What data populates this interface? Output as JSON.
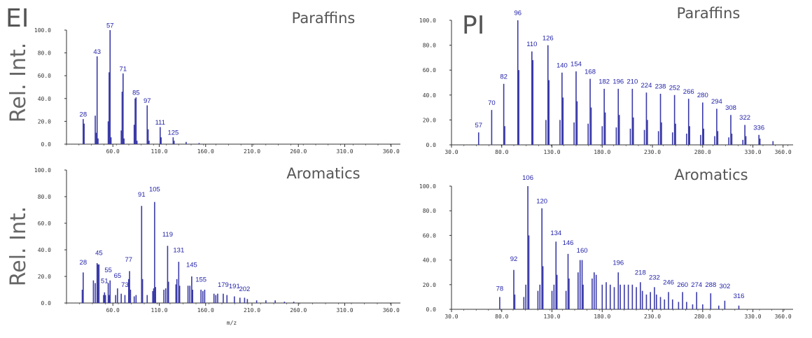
{
  "figure": {
    "ionization_labels": [
      "EI",
      "PI"
    ],
    "y_axis_label": "Rel. Int.",
    "x_axis_label": "m/z"
  },
  "colors": {
    "spectrum": "#3a3aa8",
    "axis": "#333333",
    "label": "#2222aa",
    "title": "#555555"
  },
  "chart_data": [
    {
      "id": "ei-paraffins",
      "type": "bar",
      "title": "Paraffins",
      "xlim": [
        10,
        370
      ],
      "ylim": [
        0,
        100
      ],
      "xticks": [
        "60.0",
        "110.0",
        "160.0",
        "210.0",
        "260.0",
        "310.0",
        "360.0"
      ],
      "yticks": [
        "0.0",
        "20.0",
        "40.0",
        "60.0",
        "80.0",
        "100.0"
      ],
      "peaks": [
        [
          28,
          22
        ],
        [
          29,
          18
        ],
        [
          41,
          25
        ],
        [
          42,
          10
        ],
        [
          43,
          77
        ],
        [
          44,
          5
        ],
        [
          55,
          20
        ],
        [
          56,
          63
        ],
        [
          57,
          100
        ],
        [
          58,
          6
        ],
        [
          69,
          12
        ],
        [
          70,
          46
        ],
        [
          71,
          62
        ],
        [
          72,
          5
        ],
        [
          83,
          17
        ],
        [
          84,
          40
        ],
        [
          85,
          41
        ],
        [
          86,
          3
        ],
        [
          97,
          34
        ],
        [
          98,
          13
        ],
        [
          99,
          3
        ],
        [
          111,
          15
        ],
        [
          112,
          6
        ],
        [
          125,
          6
        ],
        [
          126,
          3
        ],
        [
          139,
          2
        ],
        [
          153,
          1
        ]
      ],
      "labels": [
        [
          28,
          23,
          "28"
        ],
        [
          43,
          78,
          "43"
        ],
        [
          57,
          101,
          "57"
        ],
        [
          71,
          63,
          "71"
        ],
        [
          85,
          42,
          "85"
        ],
        [
          97,
          35,
          "97"
        ],
        [
          111,
          16,
          "111"
        ],
        [
          125,
          7,
          "125"
        ]
      ]
    },
    {
      "id": "ei-aromatics",
      "type": "bar",
      "title": "Aromatics",
      "xlim": [
        10,
        370
      ],
      "ylim": [
        0,
        100
      ],
      "xticks": [
        "60.0",
        "110.0",
        "160.0",
        "210.0",
        "260.0",
        "310.0",
        "360.0"
      ],
      "yticks": [
        "0.0",
        "20.0",
        "40.0",
        "60.0",
        "80.0",
        "100.0"
      ],
      "peaks": [
        [
          27,
          10
        ],
        [
          28,
          23
        ],
        [
          39,
          17
        ],
        [
          41,
          15
        ],
        [
          43,
          30
        ],
        [
          44,
          29
        ],
        [
          45,
          29
        ],
        [
          50,
          6
        ],
        [
          51,
          8
        ],
        [
          52,
          6
        ],
        [
          55,
          15
        ],
        [
          56,
          6
        ],
        [
          57,
          17
        ],
        [
          63,
          6
        ],
        [
          65,
          11
        ],
        [
          69,
          7
        ],
        [
          73,
          6
        ],
        [
          77,
          18
        ],
        [
          78,
          24
        ],
        [
          79,
          10
        ],
        [
          83,
          5
        ],
        [
          85,
          6
        ],
        [
          91,
          73
        ],
        [
          92,
          18
        ],
        [
          97,
          6
        ],
        [
          103,
          9
        ],
        [
          104,
          11
        ],
        [
          105,
          76
        ],
        [
          106,
          12
        ],
        [
          115,
          10
        ],
        [
          117,
          11
        ],
        [
          119,
          43
        ],
        [
          120,
          16
        ],
        [
          128,
          14
        ],
        [
          129,
          18
        ],
        [
          131,
          31
        ],
        [
          132,
          13
        ],
        [
          141,
          13
        ],
        [
          143,
          13
        ],
        [
          145,
          20
        ],
        [
          146,
          10
        ],
        [
          155,
          10
        ],
        [
          157,
          9
        ],
        [
          159,
          10
        ],
        [
          169,
          7
        ],
        [
          171,
          6
        ],
        [
          173,
          7
        ],
        [
          179,
          7
        ],
        [
          183,
          6
        ],
        [
          191,
          5
        ],
        [
          197,
          4
        ],
        [
          202,
          4
        ],
        [
          205,
          3
        ],
        [
          215,
          2
        ],
        [
          225,
          2
        ],
        [
          235,
          2
        ],
        [
          245,
          1
        ],
        [
          255,
          1
        ]
      ],
      "labels": [
        [
          28,
          28,
          "28"
        ],
        [
          45,
          35,
          "45"
        ],
        [
          51,
          14,
          "51"
        ],
        [
          55,
          22,
          "55"
        ],
        [
          65,
          18,
          "65"
        ],
        [
          73,
          11,
          "73"
        ],
        [
          77,
          30,
          "77"
        ],
        [
          91,
          79,
          "91"
        ],
        [
          105,
          83,
          "105"
        ],
        [
          119,
          49,
          "119"
        ],
        [
          131,
          37,
          "131"
        ],
        [
          145,
          26,
          "145"
        ],
        [
          155,
          15,
          "155"
        ],
        [
          179,
          11,
          "179"
        ],
        [
          191,
          10,
          "191"
        ],
        [
          202,
          8,
          "202"
        ]
      ]
    },
    {
      "id": "pi-paraffins",
      "type": "bar",
      "title": "Paraffins",
      "xlim": [
        30,
        370
      ],
      "ylim": [
        0,
        100
      ],
      "xticks": [
        "30.0",
        "80.0",
        "130.0",
        "180.0",
        "230.0",
        "280.0",
        "330.0",
        "360.0"
      ],
      "yticks": [
        "0.0",
        "20.0",
        "40.0",
        "60.0",
        "80.0",
        "100.0"
      ],
      "peaks": [
        [
          57,
          10
        ],
        [
          70,
          28
        ],
        [
          82,
          49
        ],
        [
          83,
          15
        ],
        [
          96,
          100
        ],
        [
          97,
          60
        ],
        [
          110,
          75
        ],
        [
          111,
          68
        ],
        [
          124,
          20
        ],
        [
          126,
          80
        ],
        [
          127,
          52
        ],
        [
          138,
          20
        ],
        [
          140,
          58
        ],
        [
          141,
          38
        ],
        [
          152,
          18
        ],
        [
          154,
          59
        ],
        [
          155,
          35
        ],
        [
          166,
          17
        ],
        [
          168,
          53
        ],
        [
          169,
          30
        ],
        [
          180,
          15
        ],
        [
          182,
          45
        ],
        [
          183,
          26
        ],
        [
          194,
          14
        ],
        [
          196,
          45
        ],
        [
          197,
          24
        ],
        [
          208,
          13
        ],
        [
          210,
          45
        ],
        [
          211,
          22
        ],
        [
          222,
          12
        ],
        [
          224,
          42
        ],
        [
          225,
          20
        ],
        [
          236,
          11
        ],
        [
          238,
          41
        ],
        [
          239,
          18
        ],
        [
          250,
          10
        ],
        [
          252,
          40
        ],
        [
          253,
          17
        ],
        [
          264,
          9
        ],
        [
          266,
          37
        ],
        [
          267,
          15
        ],
        [
          278,
          8
        ],
        [
          280,
          34
        ],
        [
          281,
          13
        ],
        [
          292,
          7
        ],
        [
          294,
          29
        ],
        [
          295,
          11
        ],
        [
          306,
          6
        ],
        [
          308,
          24
        ],
        [
          309,
          9
        ],
        [
          320,
          4
        ],
        [
          322,
          16
        ],
        [
          323,
          7
        ],
        [
          336,
          8
        ],
        [
          337,
          5
        ],
        [
          350,
          3
        ]
      ],
      "labels": [
        [
          57,
          13,
          "57"
        ],
        [
          70,
          31,
          "70"
        ],
        [
          82,
          52,
          "82"
        ],
        [
          96,
          103,
          "96"
        ],
        [
          110,
          78,
          "110"
        ],
        [
          126,
          83,
          "126"
        ],
        [
          140,
          61,
          "140"
        ],
        [
          154,
          62,
          "154"
        ],
        [
          168,
          56,
          "168"
        ],
        [
          182,
          48,
          "182"
        ],
        [
          196,
          48,
          "196"
        ],
        [
          210,
          48,
          "210"
        ],
        [
          224,
          45,
          "224"
        ],
        [
          238,
          44,
          "238"
        ],
        [
          252,
          43,
          "252"
        ],
        [
          266,
          40,
          "266"
        ],
        [
          280,
          37,
          "280"
        ],
        [
          294,
          32,
          "294"
        ],
        [
          308,
          27,
          "308"
        ],
        [
          322,
          19,
          "322"
        ],
        [
          336,
          11,
          "336"
        ]
      ]
    },
    {
      "id": "pi-aromatics",
      "type": "bar",
      "title": "Aromatics",
      "xlim": [
        30,
        370
      ],
      "ylim": [
        0,
        100
      ],
      "xticks": [
        "30.0",
        "80.0",
        "130.0",
        "180.0",
        "230.0",
        "280.0",
        "330.0",
        "360.0"
      ],
      "yticks": [
        "0.0",
        "20.0",
        "40.0",
        "60.0",
        "80.0",
        "100.0"
      ],
      "peaks": [
        [
          78,
          10
        ],
        [
          92,
          32
        ],
        [
          93,
          12
        ],
        [
          102,
          10
        ],
        [
          104,
          20
        ],
        [
          106,
          100
        ],
        [
          107,
          60
        ],
        [
          116,
          15
        ],
        [
          118,
          20
        ],
        [
          120,
          82
        ],
        [
          121,
          35
        ],
        [
          130,
          15
        ],
        [
          132,
          20
        ],
        [
          134,
          55
        ],
        [
          135,
          28
        ],
        [
          144,
          15
        ],
        [
          146,
          45
        ],
        [
          147,
          25
        ],
        [
          156,
          30
        ],
        [
          158,
          40
        ],
        [
          160,
          40
        ],
        [
          161,
          20
        ],
        [
          170,
          25
        ],
        [
          172,
          30
        ],
        [
          174,
          28
        ],
        [
          180,
          20
        ],
        [
          184,
          22
        ],
        [
          188,
          20
        ],
        [
          192,
          18
        ],
        [
          196,
          30
        ],
        [
          198,
          20
        ],
        [
          202,
          20
        ],
        [
          206,
          20
        ],
        [
          210,
          20
        ],
        [
          214,
          18
        ],
        [
          218,
          22
        ],
        [
          220,
          15
        ],
        [
          224,
          12
        ],
        [
          228,
          14
        ],
        [
          232,
          18
        ],
        [
          234,
          12
        ],
        [
          238,
          10
        ],
        [
          242,
          8
        ],
        [
          246,
          14
        ],
        [
          250,
          8
        ],
        [
          256,
          6
        ],
        [
          260,
          14
        ],
        [
          264,
          6
        ],
        [
          270,
          4
        ],
        [
          274,
          14
        ],
        [
          280,
          4
        ],
        [
          288,
          13
        ],
        [
          296,
          3
        ],
        [
          302,
          7
        ],
        [
          316,
          3
        ]
      ],
      "labels": [
        [
          78,
          14,
          "78"
        ],
        [
          92,
          38,
          "92"
        ],
        [
          106,
          104,
          "106"
        ],
        [
          120,
          85,
          "120"
        ],
        [
          134,
          59,
          "134"
        ],
        [
          146,
          51,
          "146"
        ],
        [
          160,
          45,
          "160"
        ],
        [
          196,
          35,
          "196"
        ],
        [
          218,
          27,
          "218"
        ],
        [
          232,
          23,
          "232"
        ],
        [
          246,
          19,
          "246"
        ],
        [
          260,
          17,
          "260"
        ],
        [
          274,
          17,
          "274"
        ],
        [
          288,
          17,
          "288"
        ],
        [
          302,
          16,
          "302"
        ],
        [
          316,
          8,
          "316"
        ]
      ]
    }
  ]
}
